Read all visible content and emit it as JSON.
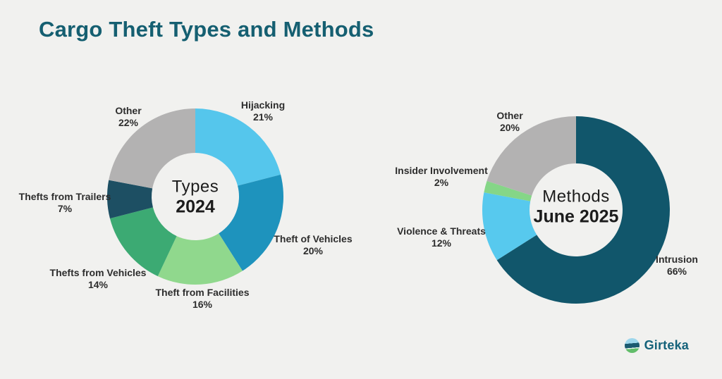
{
  "title": "Cargo Theft Types and Methods",
  "logo": {
    "text": "Girteka",
    "icon": "girteka-globe-icon"
  },
  "colors": {
    "background": "#f1f1ef",
    "title_text": "#155f71",
    "label_text": "#2d2d2d",
    "logo_text": "#14627a"
  },
  "chart_data": [
    {
      "type": "pie",
      "subtype": "donut",
      "center_title": "Types",
      "center_subtitle": "2024",
      "start_angle_deg": 0,
      "direction": "clockwise",
      "slices": [
        {
          "label": "Hijacking",
          "value": 21,
          "color": "#55c6ec"
        },
        {
          "label": "Theft of Vehicles",
          "value": 20,
          "color": "#1e93bd"
        },
        {
          "label": "Theft from Facilities",
          "value": 16,
          "color": "#90d88d"
        },
        {
          "label": "Thefts from Vehicles",
          "value": 14,
          "color": "#3caa73"
        },
        {
          "label": "Thefts from Trailers",
          "value": 7,
          "color": "#1d4f63"
        },
        {
          "label": "Other",
          "value": 22,
          "color": "#b3b2b2"
        }
      ]
    },
    {
      "type": "pie",
      "subtype": "donut",
      "center_title": "Methods",
      "center_subtitle": "June 2025",
      "start_angle_deg": 0,
      "direction": "clockwise",
      "slices": [
        {
          "label": "Intrusion",
          "value": 66,
          "color": "#11566b"
        },
        {
          "label": "Violence & Threats",
          "value": 12,
          "color": "#57c9ee"
        },
        {
          "label": "Insider Involvement",
          "value": 2,
          "color": "#85d687"
        },
        {
          "label": "Other",
          "value": 20,
          "color": "#b3b2b2"
        }
      ]
    }
  ]
}
